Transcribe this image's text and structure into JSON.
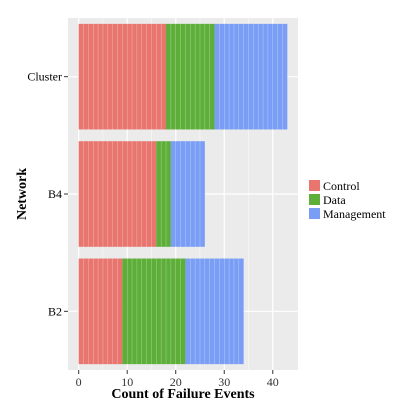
{
  "chart_data": {
    "type": "bar",
    "orientation": "horizontal",
    "stacked": true,
    "categories": [
      "Cluster",
      "B4",
      "B2"
    ],
    "series": [
      {
        "name": "Control",
        "color": "#E8766E",
        "values": [
          18,
          16,
          9
        ]
      },
      {
        "name": "Data",
        "color": "#5EAE3A",
        "values": [
          10,
          3,
          13
        ]
      },
      {
        "name": "Management",
        "color": "#7A9EF5",
        "values": [
          15,
          7,
          12
        ]
      }
    ],
    "xlabel": "Count of Failure Events",
    "ylabel": "Network",
    "xticks": [
      0,
      10,
      20,
      30,
      40
    ],
    "xlim": [
      -2.2,
      45.2
    ],
    "grid": true,
    "legend_position": "right",
    "panel_background": "#EBEBEB",
    "grid_color": "#FFFFFF"
  }
}
